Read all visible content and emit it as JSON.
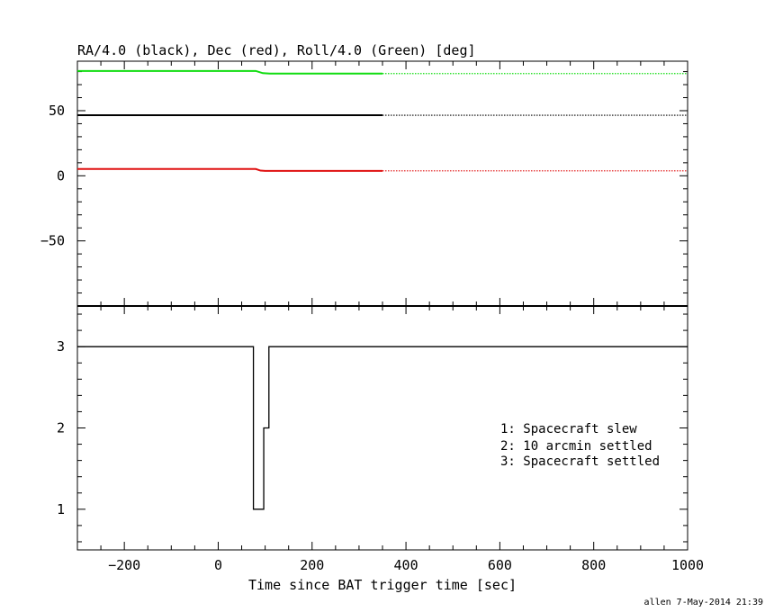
{
  "chart_data": [
    {
      "type": "line",
      "title": "RA/4.0 (black), Dec (red), Roll/4.0 (Green) [deg]",
      "xlim": [
        -300,
        1000
      ],
      "ylim": [
        -100,
        88
      ],
      "yticks_major": [
        -50,
        0,
        50
      ],
      "yticks_minor_step": 10,
      "xticks_major_step": 200,
      "xticks_minor_step": 50,
      "series": [
        {
          "color": "#000000",
          "solid": [
            [
              -300,
              46.5
            ],
            [
              350,
              46.5
            ]
          ],
          "dotted": [
            [
              350,
              46.5
            ],
            [
              1000,
              46.5
            ]
          ]
        },
        {
          "color": "#e01010",
          "solid": [
            [
              -300,
              5.2
            ],
            [
              80,
              5.2
            ],
            [
              90,
              4.0
            ],
            [
              100,
              3.8
            ],
            [
              350,
              3.8
            ]
          ],
          "dotted": [
            [
              350,
              3.8
            ],
            [
              1000,
              3.8
            ]
          ]
        },
        {
          "color": "#11dd11",
          "solid": [
            [
              -300,
              80.5
            ],
            [
              80,
              80.5
            ],
            [
              95,
              78.8
            ],
            [
              110,
              78.5
            ],
            [
              350,
              78.5
            ]
          ],
          "dotted": [
            [
              350,
              78.5
            ],
            [
              1000,
              78.5
            ]
          ]
        }
      ]
    },
    {
      "type": "line",
      "xlim": [
        -300,
        1000
      ],
      "ylim": [
        0.5,
        3.5
      ],
      "yticks_major": [
        1,
        2,
        3
      ],
      "yticks_minor_step": 0.2,
      "xticks_major": [
        -200,
        0,
        200,
        400,
        600,
        800,
        1000
      ],
      "xticks_minor_step": 50,
      "xlabel": "Time since BAT trigger time [sec]",
      "series": [
        {
          "color": "#000000",
          "step": [
            [
              -300,
              3
            ],
            [
              75,
              3
            ],
            [
              75,
              1
            ],
            [
              97,
              1
            ],
            [
              97,
              2
            ],
            [
              108,
              2
            ],
            [
              108,
              3
            ],
            [
              1000,
              3
            ]
          ]
        }
      ],
      "annotations": [
        "1: Spacecraft slew",
        "2: 10 arcmin settled",
        "3: Spacecraft settled"
      ]
    }
  ],
  "footer": "allen  7-May-2014 21:39"
}
